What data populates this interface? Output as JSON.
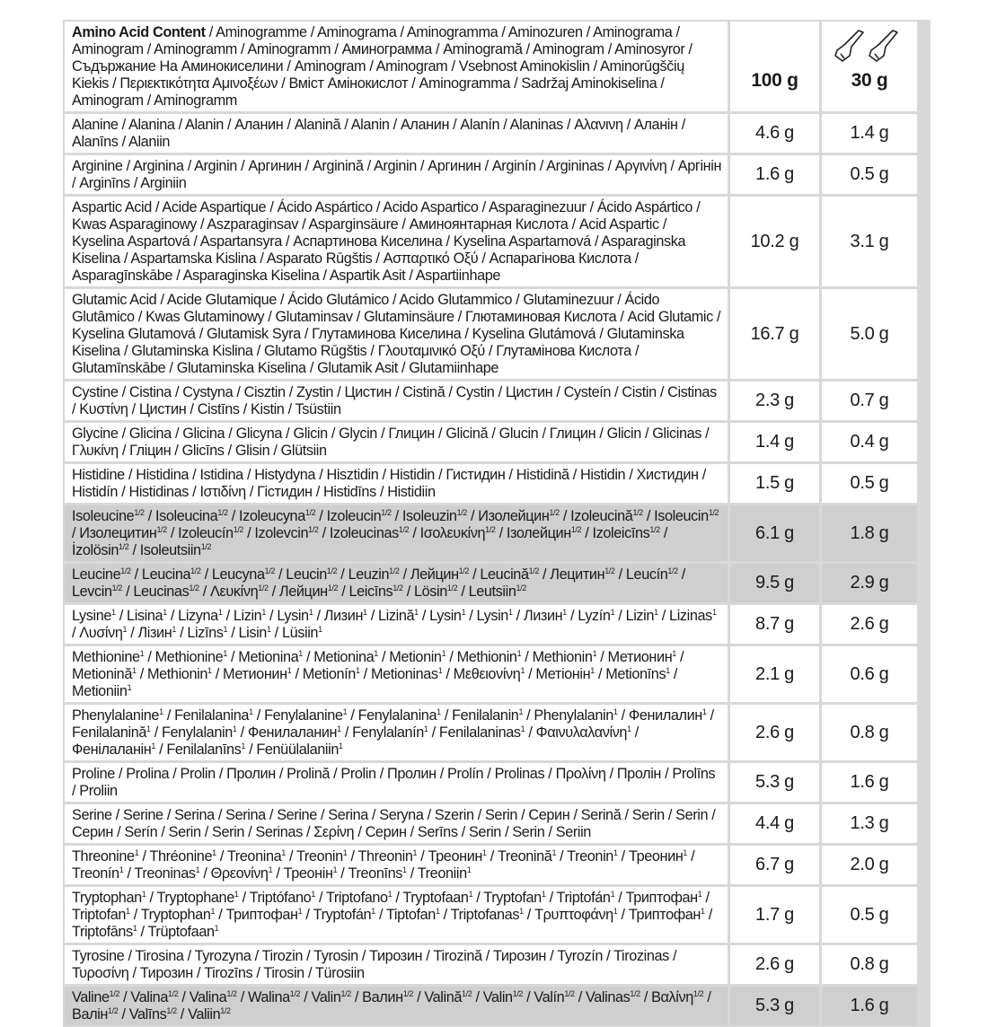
{
  "header": {
    "title": "Amino Acid Content",
    "title_rest": " / Aminogramme / Aminograma / Aminogramma / Aminozuren / Aminograma / Aminogram / Aminogramm / Aminogramm / Аминограмма / Aminogramă / Aminogram / Aminosyror / Съдържание На Аминокиселини / Aminogram / Aminogram / Vsebnost Aminokislin / Aminorūgščių Kiekis / Περιεκτικότητα Αμινοξέων / Вміст Амінокислот / Aminogramma / Sadržaj Aminokiselina / Aminogram / Aminogramm",
    "col_100g": "100 g",
    "col_30g": "30 g",
    "serving_icon": "two-scoops-icon"
  },
  "rows": [
    {
      "names": [
        "Alanine",
        "Alanina",
        "Alanin",
        "Аланин",
        "Alanină",
        "Alanin",
        "Аланин",
        "Alanín",
        "Alaninas",
        "Αλανινη",
        "Аланін",
        "Alanīns",
        "Alaniin"
      ],
      "sup": "",
      "v100": "4.6 g",
      "v30": "1.4 g",
      "highlight": false
    },
    {
      "names": [
        "Arginine",
        "Arginina",
        "Arginin",
        "Аргинин",
        "Arginină",
        "Arginin",
        "Аргинин",
        "Arginín",
        "Argininas",
        "Αργινίνη",
        "Аргінін",
        "Arginīns",
        "Arginiin"
      ],
      "sup": "",
      "v100": "1.6 g",
      "v30": "0.5 g",
      "highlight": false
    },
    {
      "names": [
        "Aspartic Acid",
        "Acide Aspartique",
        "Ácido Aspártico",
        "Acido Aspartico",
        "Asparaginezuur",
        "Ácido Aspártico",
        "Kwas Asparaginowy",
        "Aszparaginsav",
        "Asparginsäure",
        "Аминоянтарная Кислота",
        "Acid Aspartic",
        "Kyselina Aspartová",
        "Aspartansyra",
        "Аспартинова Киселина",
        "Kyselina Aspartamová",
        "Asparaginska Kiselina",
        "Aspartamska Kislina",
        "Asparato Rūgštis",
        "Ασπαρτικό Οξύ",
        "Аспарагінова Кислота",
        "Asparagīnskābe",
        "Asparaginska Kiselina",
        "Aspartik Asit",
        "Aspartiinhape"
      ],
      "sup": "",
      "v100": "10.2 g",
      "v30": "3.1 g",
      "highlight": false
    },
    {
      "names": [
        "Glutamic Acid",
        "Acide Glutamique",
        "Ácido Glutámico",
        "Acido Glutammico",
        "Glutaminezuur",
        "Ácido Glutâmico",
        "Kwas Glutaminowy",
        "Glutaminsav",
        "Glutaminsäure",
        "Глютаминовая Кислота",
        "Acid Glutamic",
        "Kyselina Glutamová",
        "Glutamisk Syra",
        "Глутаминова Киселина",
        "Kyselina Glutámová",
        "Glutaminska Kiselina",
        "Glutaminska Kislina",
        "Glutamo Rūgštis",
        "Γλουταμινικό Οξύ",
        "Глутамінова Кислота",
        "Glutamīnskābe",
        "Glutaminska Kiselina",
        "Glutamik Asit",
        "Glutamiinhape"
      ],
      "sup": "",
      "v100": "16.7 g",
      "v30": "5.0 g",
      "highlight": false
    },
    {
      "names": [
        "Cystine",
        "Cistina",
        "Cystyna",
        "Cisztin",
        "Zystin",
        "Цистин",
        "Cistină",
        "Cystin",
        "Цистин",
        "Cysteín",
        "Cistin",
        "Cistinas",
        "Κυστίνη",
        "Цистин",
        "Cistīns",
        "Kistin",
        "Tsüstiin"
      ],
      "sup": "",
      "v100": "2.3 g",
      "v30": "0.7 g",
      "highlight": false
    },
    {
      "names": [
        "Glycine",
        "Glicina",
        "Glicina",
        "Glicyna",
        "Glicin",
        "Glycin",
        "Глицин",
        "Glicină",
        "Glucin",
        "Глицин",
        "Glicin",
        "Glicinas",
        "Γλυκίνη",
        "Гліцин",
        "Glicīns",
        "Glisin",
        "Glütsiin"
      ],
      "sup": "",
      "v100": "1.4 g",
      "v30": "0.4 g",
      "highlight": false
    },
    {
      "names": [
        "Histidine",
        "Histidina",
        "Istidina",
        "Histydyna",
        "Hisztidin",
        "Histidin",
        "Гистидин",
        "Histidină",
        "Histidin",
        "Хистидин",
        "Histidín",
        "Histidinas",
        "Ιστιδίνη",
        "Гістидин",
        "Histidīns",
        "Histidiin"
      ],
      "sup": "",
      "v100": "1.5 g",
      "v30": "0.5 g",
      "highlight": false
    },
    {
      "names": [
        "Isoleucine",
        "Isoleucina",
        "Izoleucyna",
        "Izoleucin",
        "Isoleuzin",
        "Изолейцин",
        "Izoleucină",
        "Isoleucin",
        "Изолецитин",
        "Izoleucín",
        "Izolevcin",
        "Izoleucinas",
        "Ισολευκίνη",
        "Ізолейцин",
        "Izoleicīns",
        "İzolösin",
        "Isoleutsiin"
      ],
      "sup": "1/2",
      "v100": "6.1 g",
      "v30": "1.8 g",
      "highlight": true
    },
    {
      "names": [
        "Leucine",
        "Leucina",
        "Leucyna",
        "Leucin",
        "Leuzin",
        "Лейцин",
        "Leucină",
        "Лецитин",
        "Leucín",
        "Levcin",
        "Leucinas",
        "Λευκίνη",
        "Лейцин",
        "Leicīns",
        "Lösin",
        "Leutsiin"
      ],
      "sup": "1/2",
      "v100": "9.5 g",
      "v30": "2.9 g",
      "highlight": true
    },
    {
      "names": [
        "Lysine",
        "Lisina",
        "Lizyna",
        "Lizin",
        "Lysin",
        "Лизин",
        "Lizină",
        "Lysin",
        "Lysin",
        "Лизин",
        "Lyzín",
        "Lizin",
        "Lizinas",
        "Λυσίνη",
        "Лізин",
        "Lizīns",
        "Lisin",
        "Lüsiin"
      ],
      "sup": "1",
      "v100": "8.7 g",
      "v30": "2.6 g",
      "highlight": false
    },
    {
      "names": [
        "Methionine",
        "Methionine",
        "Metionina",
        "Metionina",
        "Metionin",
        "Methionin",
        "Methionin",
        "Метионин",
        "Metionină",
        "Methionin",
        "Метионин",
        "Metionín",
        "Metioninas",
        "Μεθειονίνη",
        "Метіонін",
        "Metionīns",
        "Metioniin"
      ],
      "sup": "1",
      "v100": "2.1 g",
      "v30": "0.6 g",
      "highlight": false
    },
    {
      "names": [
        "Phenylalanine",
        "Fenilalanina",
        "Fenylalanine",
        "Fenylalanina",
        "Fenilalanin",
        "Phenylalanin",
        "Фенилалин",
        "Fenilalanină",
        "Fenylalanin",
        "Фенилаланин",
        "Fenylalanín",
        "Fenilalaninas",
        "Φαινυλαλανίνη",
        "Фенілаланін",
        "Fenilalanīns",
        "Fenüülalaniin"
      ],
      "sup": "1",
      "v100": "2.6 g",
      "v30": "0.8 g",
      "highlight": false
    },
    {
      "names": [
        "Proline",
        "Prolina",
        "Prolin",
        "Пролин",
        "Prolină",
        "Prolin",
        "Пролин",
        "Prolín",
        "Prolinas",
        "Προλίνη",
        "Пролін",
        "Prolīns",
        "Proliin"
      ],
      "sup": "",
      "v100": "5.3 g",
      "v30": "1.6 g",
      "highlight": false
    },
    {
      "names": [
        "Serine",
        "Serine",
        "Serina",
        "Serina",
        "Serine",
        "Serina",
        "Seryna",
        "Szerin",
        "Serin",
        "Серин",
        "Serină",
        "Serin",
        "Serin",
        "Серин",
        "Serín",
        "Serin",
        "Serin",
        "Serinas",
        "Σερίνη",
        "Серин",
        "Serīns",
        "Serin",
        "Serin",
        "Seriin"
      ],
      "sup": "",
      "v100": "4.4 g",
      "v30": "1.3 g",
      "highlight": false
    },
    {
      "names": [
        "Threonine",
        "Thréonine",
        "Treonina",
        "Treonin",
        "Threonin",
        "Треонин",
        "Treonină",
        "Treonin",
        "Треонин",
        "Treonín",
        "Treoninas",
        "Θρεονίνη",
        "Треонін",
        "Treonīns",
        "Treoniin"
      ],
      "sup": "1",
      "v100": "6.7 g",
      "v30": "2.0 g",
      "highlight": false
    },
    {
      "names": [
        "Tryptophan",
        "Tryptophane",
        "Triptófano",
        "Triptofano",
        "Tryptofaan",
        "Tryptofan",
        "Triptofán",
        "Триптофан",
        "Triptofan",
        "Tryptophan",
        "Триптофан",
        "Tryptofán",
        "Tiptofan",
        "Triptofanas",
        "Τρυπτοφάνη",
        "Триптофан",
        "Triptofāns",
        "Trüptofaan"
      ],
      "sup": "1",
      "v100": "1.7 g",
      "v30": "0.5 g",
      "highlight": false
    },
    {
      "names": [
        "Tyrosine",
        "Tirosina",
        "Tyrozyna",
        "Tirozin",
        "Tyrosin",
        "Тирозин",
        "Tirozină",
        "Тирозин",
        "Tyrozín",
        "Tirozinas",
        "Τυροσίνη",
        "Тирозин",
        "Tirozīns",
        "Tirosin",
        "Türosiin"
      ],
      "sup": "",
      "v100": "2.6 g",
      "v30": "0.8 g",
      "highlight": false
    },
    {
      "names": [
        "Valine",
        "Valina",
        "Valina",
        "Walina",
        "Valin",
        "Валин",
        "Valină",
        "Valin",
        "Valín",
        "Valinas",
        "Βαλίνη",
        "Валін",
        "Valīns",
        "Valiin"
      ],
      "sup": "1/2",
      "v100": "5.3 g",
      "v30": "1.6 g",
      "highlight": true
    }
  ]
}
